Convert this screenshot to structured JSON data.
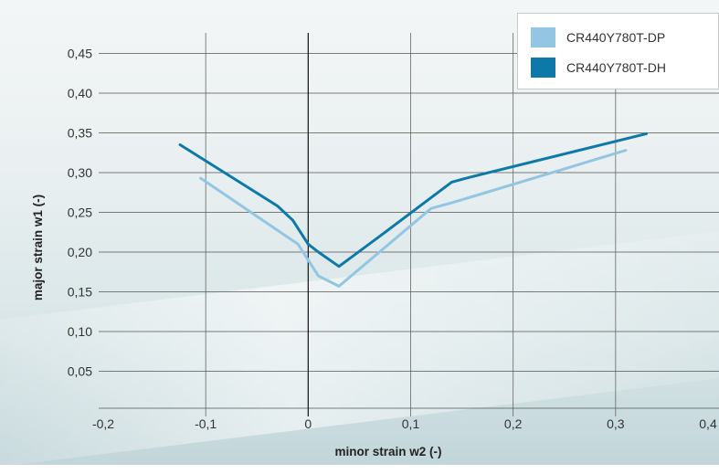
{
  "chart_data": {
    "type": "line",
    "xlabel": "minor strain w2 (-)",
    "ylabel": "major strain w1 (-)",
    "xlim": [
      -0.2,
      0.4
    ],
    "ylim": [
      0.0,
      0.5
    ],
    "x_ticks": [
      "-0,2",
      "-0,1",
      "0",
      "0,1",
      "0,2",
      "0,3",
      "0,4"
    ],
    "y_ticks": [
      "0,05",
      "0,10",
      "0,15",
      "0,20",
      "0,25",
      "0,30",
      "0,35",
      "0,40",
      "0,45"
    ],
    "grid": true,
    "legend_position": "top-right",
    "series": [
      {
        "name": "CR440Y780T-DP",
        "color": "#93c6e2",
        "points": [
          [
            -0.105,
            0.293
          ],
          [
            -0.01,
            0.21
          ],
          [
            0.0,
            0.19
          ],
          [
            0.01,
            0.17
          ],
          [
            0.03,
            0.157
          ],
          [
            0.12,
            0.255
          ],
          [
            0.14,
            0.262
          ],
          [
            0.31,
            0.328
          ]
        ]
      },
      {
        "name": "CR440Y780T-DH",
        "color": "#0d79a8",
        "points": [
          [
            -0.125,
            0.335
          ],
          [
            -0.03,
            0.258
          ],
          [
            -0.015,
            0.24
          ],
          [
            0.0,
            0.21
          ],
          [
            0.01,
            0.2
          ],
          [
            0.03,
            0.182
          ],
          [
            0.07,
            0.22
          ],
          [
            0.14,
            0.288
          ],
          [
            0.16,
            0.295
          ],
          [
            0.33,
            0.349
          ]
        ]
      }
    ]
  }
}
